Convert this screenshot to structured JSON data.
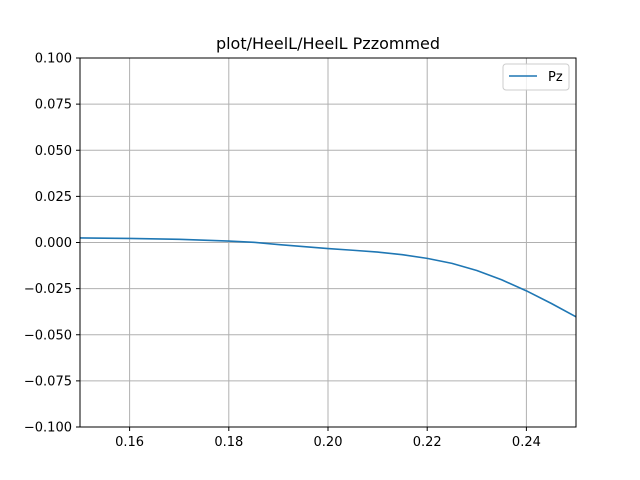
{
  "chart_data": {
    "type": "line",
    "title": "plot/HeelL/HeelL Pzzommed",
    "xlabel": "",
    "ylabel": "",
    "xlim": [
      0.15,
      0.25
    ],
    "ylim": [
      -0.1,
      0.1
    ],
    "grid": true,
    "legend_position": "top-right",
    "x_ticks": [
      0.16,
      0.18,
      0.2,
      0.22,
      0.24
    ],
    "x_tick_labels": [
      "0.16",
      "0.18",
      "0.20",
      "0.22",
      "0.24"
    ],
    "y_ticks": [
      0.1,
      0.075,
      0.05,
      0.025,
      0.0,
      -0.025,
      -0.05,
      -0.075,
      -0.1
    ],
    "y_tick_labels": [
      "0.100",
      "0.075",
      "0.050",
      "0.025",
      "0.000",
      "−0.025",
      "−0.050",
      "−0.075",
      "−0.100"
    ],
    "series": [
      {
        "name": "Pz",
        "color": "#1f77b4",
        "x": [
          0.15,
          0.16,
          0.17,
          0.18,
          0.185,
          0.19,
          0.195,
          0.2,
          0.205,
          0.21,
          0.215,
          0.22,
          0.225,
          0.23,
          0.235,
          0.24,
          0.245,
          0.25
        ],
        "y": [
          0.0025,
          0.0022,
          0.0017,
          0.0008,
          0.0001,
          -0.0011,
          -0.0022,
          -0.0033,
          -0.0042,
          -0.0052,
          -0.0066,
          -0.0086,
          -0.0113,
          -0.0152,
          -0.0202,
          -0.0262,
          -0.033,
          -0.0403
        ]
      }
    ]
  }
}
